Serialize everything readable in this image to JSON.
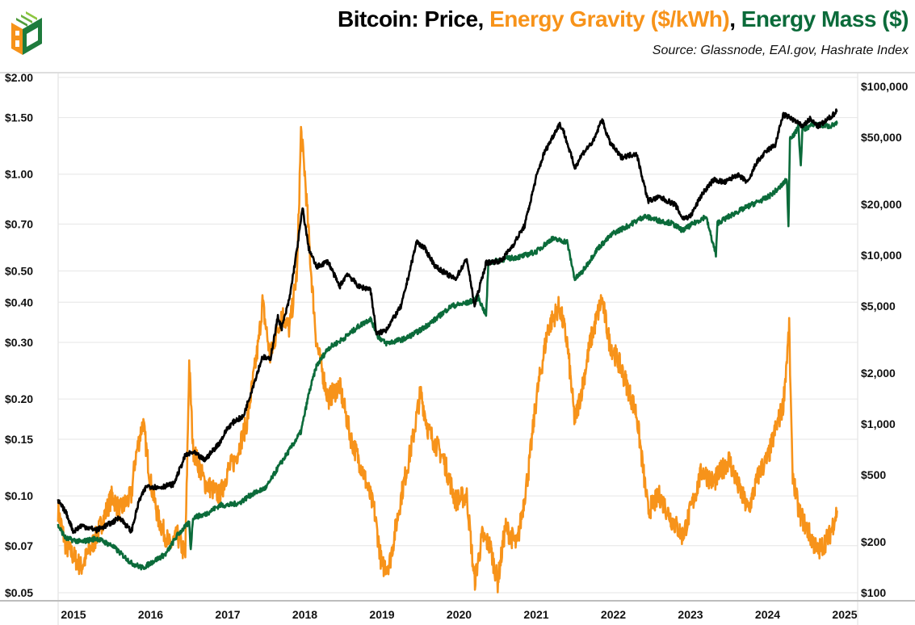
{
  "title": {
    "part1": "Bitcoin: Price, ",
    "part2": "Energy Gravity ($/kWh)",
    "part3": ", ",
    "part4": "Energy Mass ($)"
  },
  "source": "Source: Glassnode, EAI.gov, Hashrate Index",
  "colors": {
    "price": "#000000",
    "gravity": "#F7931A",
    "mass": "#0B6B3A",
    "grid": "#e6e6e6",
    "axis": "#bdbdbd"
  },
  "chart_data": {
    "type": "line",
    "title": "Bitcoin: Price, Energy Gravity ($/kWh), Energy Mass ($)",
    "x_tick_labels": [
      "2015",
      "2016",
      "2017",
      "2018",
      "2019",
      "2020",
      "2021",
      "2022",
      "2023",
      "2024",
      "2025"
    ],
    "left_axis": {
      "scale": "log",
      "range": [
        0.05,
        2.0
      ],
      "tick_values": [
        0.05,
        0.07,
        0.1,
        0.15,
        0.2,
        0.3,
        0.4,
        0.5,
        0.7,
        1.0,
        1.5,
        2.0
      ],
      "tick_labels": [
        "$0.05",
        "$0.07",
        "$0.10",
        "$0.15",
        "$0.20",
        "$0.30",
        "$0.40",
        "$0.50",
        "$0.70",
        "$1.00",
        "$1.50",
        "$2.00"
      ]
    },
    "right_axis": {
      "scale": "log",
      "range": [
        100,
        100000
      ],
      "tick_values": [
        100,
        200,
        500,
        1000,
        2000,
        5000,
        10000,
        20000,
        50000,
        100000
      ],
      "tick_labels": [
        "$100",
        "$200",
        "$500",
        "$1,000",
        "$2,000",
        "$5,000",
        "$10,000",
        "$20,000",
        "$50,000",
        "$100,000"
      ]
    },
    "grid": "horizontal",
    "series": [
      {
        "name": "Energy Gravity ($/kWh)",
        "axis": "left",
        "color": "#F7931A",
        "points": [
          [
            2014.8,
            0.09
          ],
          [
            2014.9,
            0.07
          ],
          [
            2015.0,
            0.065
          ],
          [
            2015.1,
            0.06
          ],
          [
            2015.3,
            0.075
          ],
          [
            2015.5,
            0.1
          ],
          [
            2015.6,
            0.09
          ],
          [
            2015.75,
            0.1
          ],
          [
            2015.8,
            0.13
          ],
          [
            2015.9,
            0.17
          ],
          [
            2016.0,
            0.11
          ],
          [
            2016.1,
            0.085
          ],
          [
            2016.25,
            0.07
          ],
          [
            2016.35,
            0.075
          ],
          [
            2016.45,
            0.065
          ],
          [
            2016.5,
            0.26
          ],
          [
            2016.55,
            0.14
          ],
          [
            2016.7,
            0.11
          ],
          [
            2016.9,
            0.1
          ],
          [
            2017.0,
            0.12
          ],
          [
            2017.1,
            0.13
          ],
          [
            2017.25,
            0.17
          ],
          [
            2017.4,
            0.3
          ],
          [
            2017.45,
            0.4
          ],
          [
            2017.55,
            0.27
          ],
          [
            2017.7,
            0.37
          ],
          [
            2017.8,
            0.33
          ],
          [
            2017.9,
            0.5
          ],
          [
            2017.95,
            1.36
          ],
          [
            2018.0,
            1.0
          ],
          [
            2018.08,
            0.5
          ],
          [
            2018.15,
            0.3
          ],
          [
            2018.3,
            0.2
          ],
          [
            2018.45,
            0.22
          ],
          [
            2018.6,
            0.15
          ],
          [
            2018.75,
            0.12
          ],
          [
            2018.9,
            0.09
          ],
          [
            2019.0,
            0.06
          ],
          [
            2019.1,
            0.062
          ],
          [
            2019.25,
            0.1
          ],
          [
            2019.4,
            0.15
          ],
          [
            2019.5,
            0.21
          ],
          [
            2019.6,
            0.16
          ],
          [
            2019.8,
            0.13
          ],
          [
            2019.95,
            0.097
          ],
          [
            2020.1,
            0.1
          ],
          [
            2020.2,
            0.054
          ],
          [
            2020.3,
            0.075
          ],
          [
            2020.4,
            0.07
          ],
          [
            2020.5,
            0.054
          ],
          [
            2020.6,
            0.08
          ],
          [
            2020.75,
            0.07
          ],
          [
            2020.9,
            0.12
          ],
          [
            2021.0,
            0.2
          ],
          [
            2021.15,
            0.33
          ],
          [
            2021.3,
            0.39
          ],
          [
            2021.4,
            0.3
          ],
          [
            2021.5,
            0.17
          ],
          [
            2021.6,
            0.22
          ],
          [
            2021.7,
            0.3
          ],
          [
            2021.85,
            0.41
          ],
          [
            2021.95,
            0.3
          ],
          [
            2022.1,
            0.25
          ],
          [
            2022.3,
            0.18
          ],
          [
            2022.45,
            0.09
          ],
          [
            2022.6,
            0.1
          ],
          [
            2022.75,
            0.085
          ],
          [
            2022.9,
            0.075
          ],
          [
            2023.0,
            0.09
          ],
          [
            2023.15,
            0.12
          ],
          [
            2023.3,
            0.11
          ],
          [
            2023.5,
            0.13
          ],
          [
            2023.6,
            0.11
          ],
          [
            2023.75,
            0.09
          ],
          [
            2023.9,
            0.12
          ],
          [
            2024.0,
            0.13
          ],
          [
            2024.1,
            0.16
          ],
          [
            2024.2,
            0.19
          ],
          [
            2024.28,
            0.33
          ],
          [
            2024.32,
            0.12
          ],
          [
            2024.4,
            0.09
          ],
          [
            2024.5,
            0.08
          ],
          [
            2024.65,
            0.067
          ],
          [
            2024.8,
            0.075
          ],
          [
            2024.9,
            0.09
          ]
        ]
      },
      {
        "name": "Energy Mass ($)",
        "axis": "right",
        "color": "#0B6B3A",
        "points": [
          [
            2014.8,
            250
          ],
          [
            2014.9,
            210
          ],
          [
            2015.1,
            200
          ],
          [
            2015.3,
            210
          ],
          [
            2015.5,
            190
          ],
          [
            2015.75,
            150
          ],
          [
            2015.9,
            140
          ],
          [
            2016.0,
            150
          ],
          [
            2016.2,
            170
          ],
          [
            2016.35,
            220
          ],
          [
            2016.5,
            260
          ],
          [
            2016.52,
            180
          ],
          [
            2016.55,
            280
          ],
          [
            2016.7,
            290
          ],
          [
            2016.9,
            330
          ],
          [
            2017.0,
            330
          ],
          [
            2017.15,
            340
          ],
          [
            2017.3,
            380
          ],
          [
            2017.5,
            420
          ],
          [
            2017.65,
            550
          ],
          [
            2017.8,
            700
          ],
          [
            2017.95,
            900
          ],
          [
            2018.05,
            1500
          ],
          [
            2018.15,
            2200
          ],
          [
            2018.3,
            2800
          ],
          [
            2018.5,
            3200
          ],
          [
            2018.7,
            3800
          ],
          [
            2018.85,
            4200
          ],
          [
            2018.95,
            3300
          ],
          [
            2019.05,
            3000
          ],
          [
            2019.3,
            3200
          ],
          [
            2019.5,
            3600
          ],
          [
            2019.7,
            4200
          ],
          [
            2019.9,
            5000
          ],
          [
            2020.1,
            5200
          ],
          [
            2020.25,
            5600
          ],
          [
            2020.35,
            4400
          ],
          [
            2020.38,
            9000
          ],
          [
            2020.6,
            9500
          ],
          [
            2020.8,
            9800
          ],
          [
            2021.0,
            10500
          ],
          [
            2021.2,
            12500
          ],
          [
            2021.4,
            12000
          ],
          [
            2021.5,
            7200
          ],
          [
            2021.6,
            8000
          ],
          [
            2021.8,
            11000
          ],
          [
            2022.0,
            13500
          ],
          [
            2022.2,
            15000
          ],
          [
            2022.4,
            17000
          ],
          [
            2022.6,
            16000
          ],
          [
            2022.75,
            15500
          ],
          [
            2022.9,
            14000
          ],
          [
            2023.0,
            15000
          ],
          [
            2023.2,
            17000
          ],
          [
            2023.33,
            10000
          ],
          [
            2023.35,
            15500
          ],
          [
            2023.6,
            18000
          ],
          [
            2023.8,
            20000
          ],
          [
            2024.0,
            22000
          ],
          [
            2024.15,
            25000
          ],
          [
            2024.25,
            28000
          ],
          [
            2024.27,
            14500
          ],
          [
            2024.29,
            50000
          ],
          [
            2024.35,
            52000
          ],
          [
            2024.4,
            58000
          ],
          [
            2024.43,
            33000
          ],
          [
            2024.45,
            55000
          ],
          [
            2024.6,
            60000
          ],
          [
            2024.8,
            58000
          ],
          [
            2024.9,
            60000
          ]
        ]
      },
      {
        "name": "Price",
        "axis": "right",
        "color": "#000000",
        "points": [
          [
            2014.8,
            350
          ],
          [
            2014.9,
            300
          ],
          [
            2015.0,
            230
          ],
          [
            2015.1,
            250
          ],
          [
            2015.3,
            235
          ],
          [
            2015.5,
            260
          ],
          [
            2015.6,
            280
          ],
          [
            2015.75,
            230
          ],
          [
            2015.85,
            350
          ],
          [
            2015.95,
            430
          ],
          [
            2016.1,
            420
          ],
          [
            2016.3,
            440
          ],
          [
            2016.45,
            650
          ],
          [
            2016.55,
            680
          ],
          [
            2016.7,
            610
          ],
          [
            2016.9,
            780
          ],
          [
            2017.0,
            950
          ],
          [
            2017.1,
            1050
          ],
          [
            2017.2,
            1100
          ],
          [
            2017.35,
            1800
          ],
          [
            2017.45,
            2500
          ],
          [
            2017.55,
            2400
          ],
          [
            2017.65,
            4300
          ],
          [
            2017.7,
            3700
          ],
          [
            2017.8,
            5500
          ],
          [
            2017.9,
            11000
          ],
          [
            2017.97,
            19000
          ],
          [
            2018.05,
            11000
          ],
          [
            2018.15,
            8500
          ],
          [
            2018.3,
            9200
          ],
          [
            2018.45,
            6500
          ],
          [
            2018.55,
            7800
          ],
          [
            2018.7,
            6500
          ],
          [
            2018.85,
            6300
          ],
          [
            2018.93,
            3400
          ],
          [
            2019.05,
            3600
          ],
          [
            2019.25,
            5000
          ],
          [
            2019.45,
            12000
          ],
          [
            2019.55,
            11000
          ],
          [
            2019.7,
            8500
          ],
          [
            2019.95,
            7200
          ],
          [
            2020.1,
            9500
          ],
          [
            2020.2,
            5000
          ],
          [
            2020.35,
            9000
          ],
          [
            2020.55,
            9300
          ],
          [
            2020.7,
            11500
          ],
          [
            2020.85,
            15000
          ],
          [
            2021.0,
            29000
          ],
          [
            2021.1,
            40000
          ],
          [
            2021.3,
            60000
          ],
          [
            2021.35,
            55000
          ],
          [
            2021.5,
            33000
          ],
          [
            2021.6,
            40000
          ],
          [
            2021.75,
            48000
          ],
          [
            2021.85,
            64000
          ],
          [
            2021.95,
            47000
          ],
          [
            2022.1,
            38000
          ],
          [
            2022.3,
            40000
          ],
          [
            2022.45,
            21000
          ],
          [
            2022.6,
            22000
          ],
          [
            2022.8,
            20000
          ],
          [
            2022.9,
            16500
          ],
          [
            2023.0,
            17000
          ],
          [
            2023.15,
            23000
          ],
          [
            2023.3,
            28000
          ],
          [
            2023.45,
            27000
          ],
          [
            2023.6,
            30000
          ],
          [
            2023.75,
            27000
          ],
          [
            2023.85,
            35000
          ],
          [
            2024.0,
            42000
          ],
          [
            2024.1,
            45000
          ],
          [
            2024.2,
            68000
          ],
          [
            2024.3,
            65000
          ],
          [
            2024.45,
            58000
          ],
          [
            2024.55,
            64000
          ],
          [
            2024.65,
            58000
          ],
          [
            2024.75,
            62000
          ],
          [
            2024.85,
            68000
          ],
          [
            2024.9,
            72000
          ]
        ]
      }
    ]
  }
}
